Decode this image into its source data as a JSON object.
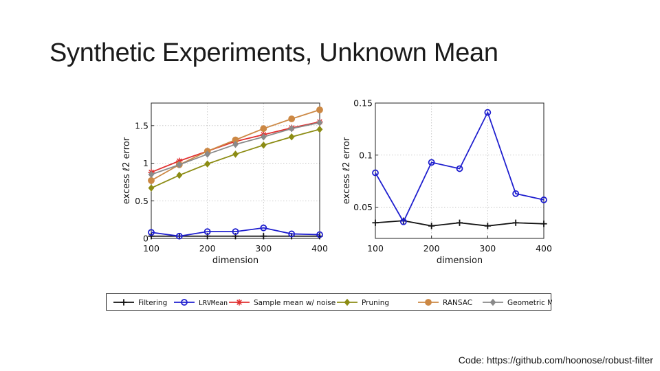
{
  "slide": {
    "title": "Synthetic Experiments, Unknown Mean",
    "code_note": "Code: https://github.com/hoonose/robust-filter"
  },
  "legend": [
    {
      "name": "Filtering",
      "color": "#111111",
      "marker": "plus"
    },
    {
      "name": "LRVMean",
      "color": "#1f1fcf",
      "marker": "circle"
    },
    {
      "name": "Sample mean w/ noise",
      "color": "#e03030",
      "marker": "star"
    },
    {
      "name": "Pruning",
      "color": "#8c8c14",
      "marker": "diamond"
    },
    {
      "name": "RANSAC",
      "color": "#cc8844",
      "marker": "filled-circle"
    },
    {
      "name": "Geometric Median",
      "color": "#8a8a8a",
      "marker": "diamond"
    }
  ],
  "chart_data": [
    {
      "type": "line",
      "xlabel": "dimension",
      "ylabel": "excess ℓ2 error",
      "xlim": [
        100,
        400
      ],
      "ylim": [
        0,
        1.8
      ],
      "xticks": [
        100,
        200,
        300,
        400
      ],
      "yticks": [
        0,
        0.5,
        1,
        1.5
      ],
      "ytick_labels": [
        "0",
        "0.5",
        "1",
        "1.5"
      ],
      "grid": true,
      "x": [
        100,
        150,
        200,
        250,
        300,
        350,
        400
      ],
      "series": [
        {
          "name": "Filtering",
          "values": [
            0.03,
            0.03,
            0.03,
            0.03,
            0.03,
            0.03,
            0.03
          ]
        },
        {
          "name": "LRVMean",
          "values": [
            0.08,
            0.03,
            0.09,
            0.09,
            0.14,
            0.06,
            0.05
          ]
        },
        {
          "name": "Sample mean w/ noise",
          "values": [
            0.88,
            1.03,
            1.16,
            1.29,
            1.38,
            1.47,
            1.55
          ]
        },
        {
          "name": "Pruning",
          "values": [
            0.67,
            0.84,
            0.99,
            1.12,
            1.24,
            1.35,
            1.45
          ]
        },
        {
          "name": "RANSAC",
          "values": [
            0.77,
            0.98,
            1.16,
            1.31,
            1.46,
            1.59,
            1.71
          ]
        },
        {
          "name": "Geometric Median",
          "values": [
            0.85,
            0.98,
            1.12,
            1.25,
            1.35,
            1.46,
            1.54
          ]
        }
      ]
    },
    {
      "type": "line",
      "xlabel": "dimension",
      "ylabel": "excess ℓ2 error",
      "xlim": [
        100,
        400
      ],
      "ylim": [
        0.02,
        0.15
      ],
      "xticks": [
        100,
        200,
        300,
        400
      ],
      "yticks": [
        0.05,
        0.1,
        0.15
      ],
      "ytick_labels": [
        "0.05",
        "0.1",
        "0.15"
      ],
      "grid": true,
      "x": [
        100,
        150,
        200,
        250,
        300,
        350,
        400
      ],
      "series": [
        {
          "name": "Filtering",
          "values": [
            0.035,
            0.037,
            0.032,
            0.035,
            0.032,
            0.035,
            0.034
          ]
        },
        {
          "name": "LRVMean",
          "values": [
            0.083,
            0.036,
            0.093,
            0.087,
            0.141,
            0.063,
            0.057
          ]
        }
      ]
    }
  ]
}
